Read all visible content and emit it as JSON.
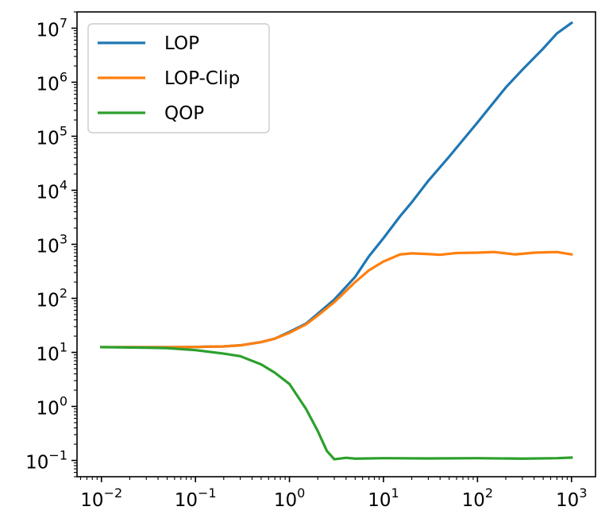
{
  "chart_data": {
    "type": "line",
    "title": "",
    "xlabel": "",
    "ylabel": "",
    "xscale": "log",
    "yscale": "log",
    "xlim": [
      0.0055,
      1800
    ],
    "ylim": [
      0.05,
      20000000
    ],
    "grid": false,
    "legend_position": "upper-left",
    "x_ticks": [
      {
        "base": "10",
        "exp": "−2",
        "value": 0.01
      },
      {
        "base": "10",
        "exp": "−1",
        "value": 0.1
      },
      {
        "base": "10",
        "exp": "0",
        "value": 1
      },
      {
        "base": "10",
        "exp": "1",
        "value": 10
      },
      {
        "base": "10",
        "exp": "2",
        "value": 100
      },
      {
        "base": "10",
        "exp": "3",
        "value": 1000
      }
    ],
    "y_ticks": [
      {
        "base": "10",
        "exp": "−1",
        "value": 0.1
      },
      {
        "base": "10",
        "exp": "0",
        "value": 1
      },
      {
        "base": "10",
        "exp": "1",
        "value": 10
      },
      {
        "base": "10",
        "exp": "2",
        "value": 100
      },
      {
        "base": "10",
        "exp": "3",
        "value": 1000
      },
      {
        "base": "10",
        "exp": "4",
        "value": 10000
      },
      {
        "base": "10",
        "exp": "5",
        "value": 100000
      },
      {
        "base": "10",
        "exp": "6",
        "value": 1000000
      },
      {
        "base": "10",
        "exp": "7",
        "value": 10000000
      }
    ],
    "series": [
      {
        "name": "LOP",
        "color": "#1f77b4",
        "points": [
          [
            0.01,
            12.5
          ],
          [
            0.02,
            12.5
          ],
          [
            0.05,
            12.5
          ],
          [
            0.1,
            12.6
          ],
          [
            0.2,
            12.9
          ],
          [
            0.3,
            13.5
          ],
          [
            0.5,
            15.5
          ],
          [
            0.7,
            18
          ],
          [
            1.0,
            24
          ],
          [
            1.5,
            34
          ],
          [
            2.0,
            52
          ],
          [
            3.0,
            95
          ],
          [
            5.0,
            250
          ],
          [
            7.0,
            600
          ],
          [
            10,
            1300
          ],
          [
            15,
            3300
          ],
          [
            20,
            6000
          ],
          [
            30,
            15000
          ],
          [
            50,
            42000
          ],
          [
            100,
            180000
          ],
          [
            200,
            800000
          ],
          [
            300,
            1700000
          ],
          [
            500,
            4200000
          ],
          [
            700,
            8000000
          ],
          [
            1000,
            12500000
          ]
        ]
      },
      {
        "name": "LOP-Clip",
        "color": "#ff7f0e",
        "points": [
          [
            0.01,
            12.5
          ],
          [
            0.02,
            12.5
          ],
          [
            0.05,
            12.5
          ],
          [
            0.1,
            12.6
          ],
          [
            0.2,
            12.9
          ],
          [
            0.3,
            13.5
          ],
          [
            0.5,
            15.5
          ],
          [
            0.7,
            18
          ],
          [
            1.0,
            23
          ],
          [
            1.5,
            33
          ],
          [
            2.0,
            48
          ],
          [
            3.0,
            85
          ],
          [
            5.0,
            200
          ],
          [
            7.0,
            330
          ],
          [
            10,
            480
          ],
          [
            15,
            650
          ],
          [
            20,
            680
          ],
          [
            30,
            660
          ],
          [
            40,
            640
          ],
          [
            60,
            690
          ],
          [
            100,
            700
          ],
          [
            150,
            720
          ],
          [
            250,
            650
          ],
          [
            400,
            700
          ],
          [
            700,
            720
          ],
          [
            1000,
            650
          ]
        ]
      },
      {
        "name": "QOP",
        "color": "#2ca02c",
        "points": [
          [
            0.01,
            12.5
          ],
          [
            0.03,
            12.2
          ],
          [
            0.05,
            12
          ],
          [
            0.1,
            11.0
          ],
          [
            0.2,
            9.5
          ],
          [
            0.3,
            8.5
          ],
          [
            0.5,
            6.0
          ],
          [
            0.7,
            4.2
          ],
          [
            1.0,
            2.6
          ],
          [
            1.5,
            0.9
          ],
          [
            2.0,
            0.35
          ],
          [
            2.5,
            0.15
          ],
          [
            3.0,
            0.105
          ],
          [
            4.0,
            0.112
          ],
          [
            5.0,
            0.108
          ],
          [
            10,
            0.11
          ],
          [
            30,
            0.109
          ],
          [
            100,
            0.11
          ],
          [
            300,
            0.108
          ],
          [
            700,
            0.11
          ],
          [
            1000,
            0.113
          ]
        ]
      }
    ]
  }
}
